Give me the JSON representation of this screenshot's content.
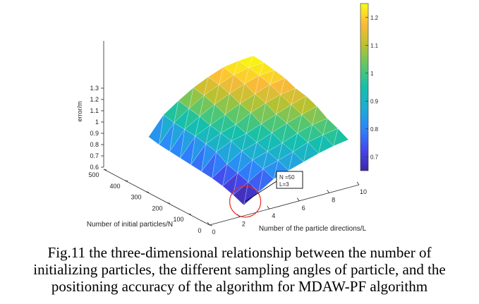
{
  "chart_data": {
    "type": "surface",
    "zlabel": "error/m",
    "xlabel": "Number of initial particles/N",
    "ylabel": "Number of the particle directions/L",
    "x_ticks": [
      0,
      100,
      200,
      300,
      400,
      500
    ],
    "y_ticks": [
      0,
      2,
      4,
      6,
      8,
      10
    ],
    "z_ticks": [
      "0.6",
      "0.7",
      "0.8",
      "0.9",
      "1",
      "1.1",
      "1.2",
      "1.3"
    ],
    "colorbar_ticks": [
      "0.7",
      "0.8",
      "0.9",
      "1",
      "1.1",
      "1.2"
    ],
    "colormap": "parula",
    "zlim": [
      0.6,
      1.3
    ],
    "color_range": [
      0.65,
      1.25
    ],
    "N_values": [
      50,
      100,
      150,
      200,
      250,
      300,
      350,
      400,
      450,
      500
    ],
    "L_values": [
      3,
      4,
      5,
      6,
      7,
      8,
      9,
      10
    ],
    "error": [
      [
        0.62,
        0.7,
        0.78,
        0.82,
        0.86,
        0.9,
        0.93,
        0.95
      ],
      [
        0.66,
        0.74,
        0.82,
        0.86,
        0.9,
        0.95,
        0.98,
        1.0
      ],
      [
        0.69,
        0.77,
        0.85,
        0.89,
        0.93,
        0.98,
        1.02,
        1.04
      ],
      [
        0.71,
        0.8,
        0.88,
        0.92,
        0.97,
        1.02,
        1.06,
        1.1
      ],
      [
        0.72,
        0.86,
        0.92,
        0.95,
        1.0,
        1.05,
        1.1,
        1.14
      ],
      [
        0.73,
        0.88,
        0.94,
        0.98,
        1.05,
        1.1,
        1.14,
        1.16
      ],
      [
        0.74,
        0.9,
        0.96,
        1.02,
        1.08,
        1.13,
        1.18,
        1.2
      ],
      [
        0.75,
        0.91,
        0.99,
        1.06,
        1.12,
        1.17,
        1.21,
        1.22
      ],
      [
        0.76,
        0.92,
        1.01,
        1.09,
        1.15,
        1.2,
        1.23,
        1.24
      ],
      [
        0.78,
        0.94,
        1.03,
        1.11,
        1.17,
        1.22,
        1.24,
        1.25
      ]
    ],
    "annotation": {
      "line1": "N =50",
      "line2": "L=3",
      "N": 50,
      "L": 3
    }
  },
  "caption": {
    "line1": "Fig.11 the three-dimensional relationship between the number of",
    "line2": "initializing particles, the different sampling angles of particle, and the",
    "line3": "positioning accuracy of the algorithm for MDAW-PF algorithm"
  },
  "colors": {
    "annotation_circle": "#e8312a",
    "axis": "#262626",
    "mesh": "#ffffff"
  }
}
